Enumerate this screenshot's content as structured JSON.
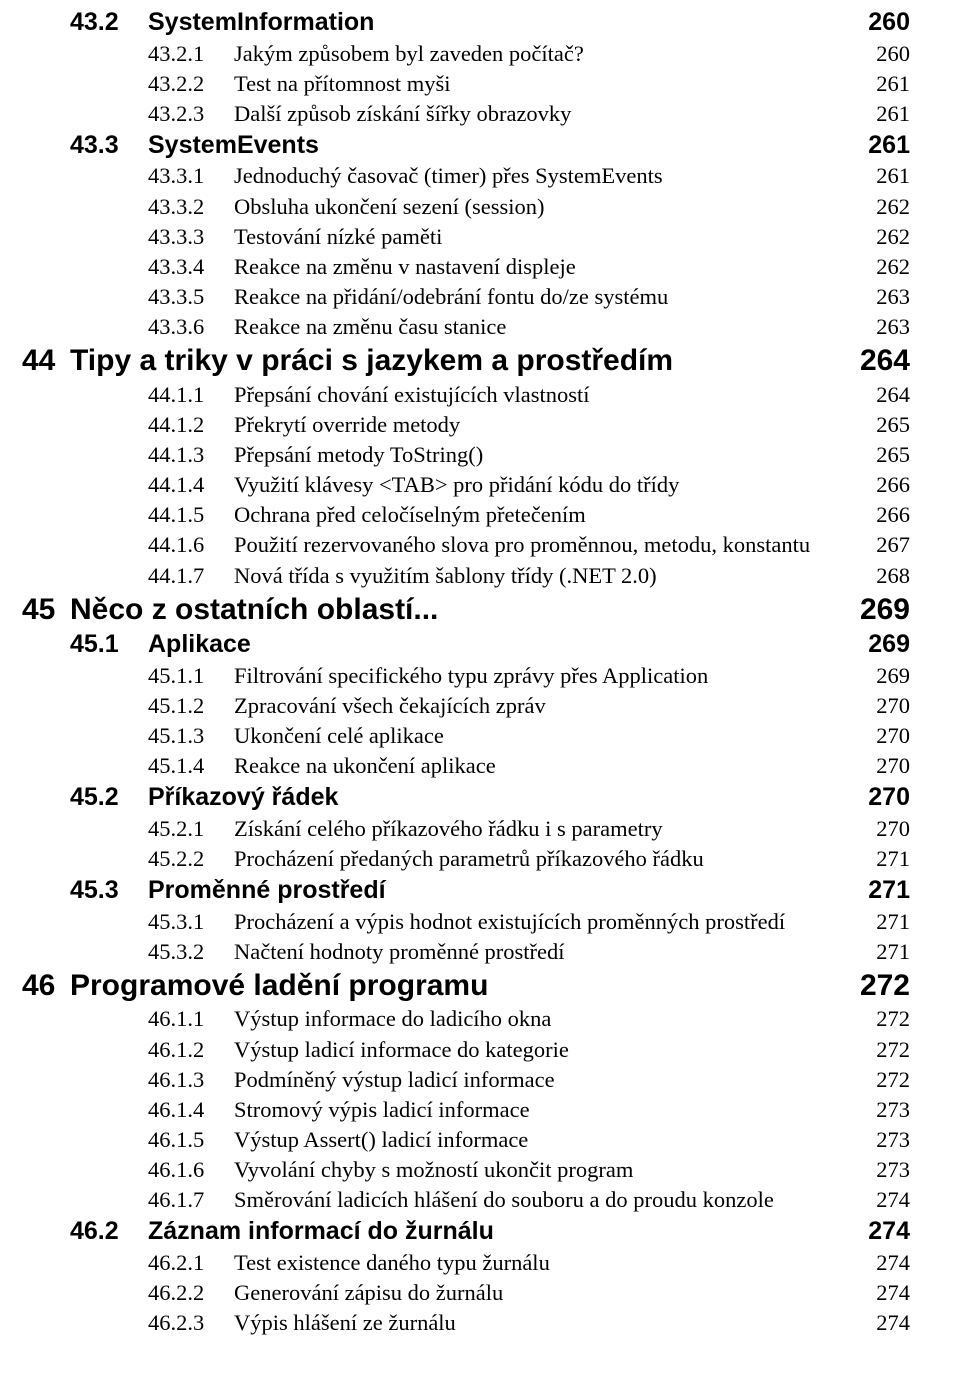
{
  "text_color": "#000000",
  "background_color": "#ffffff",
  "fonts": {
    "serif": "Times New Roman",
    "sans": "Arial/Helvetica"
  },
  "font_sizes_pt": {
    "l1": 22,
    "l2": 18,
    "l3": 16
  },
  "toc": [
    {
      "level": 2,
      "num": "43.2",
      "title": "SystemInformation",
      "page": "260"
    },
    {
      "level": 3,
      "num": "43.2.1",
      "title": "Jakým způsobem byl zaveden počítač?",
      "page": "260"
    },
    {
      "level": 3,
      "num": "43.2.2",
      "title": "Test na přítomnost myši",
      "page": "261"
    },
    {
      "level": 3,
      "num": "43.2.3",
      "title": "Další způsob získání šířky obrazovky",
      "page": "261"
    },
    {
      "level": 2,
      "num": "43.3",
      "title": "SystemEvents",
      "page": "261"
    },
    {
      "level": 3,
      "num": "43.3.1",
      "title": "Jednoduchý časovač (timer) přes SystemEvents",
      "page": "261"
    },
    {
      "level": 3,
      "num": "43.3.2",
      "title": "Obsluha ukončení sezení (session)",
      "page": "262"
    },
    {
      "level": 3,
      "num": "43.3.3",
      "title": "Testování nízké paměti",
      "page": "262"
    },
    {
      "level": 3,
      "num": "43.3.4",
      "title": "Reakce na změnu v nastavení displeje",
      "page": "262"
    },
    {
      "level": 3,
      "num": "43.3.5",
      "title": "Reakce na přidání/odebrání fontu do/ze systému",
      "page": "263"
    },
    {
      "level": 3,
      "num": "43.3.6",
      "title": "Reakce na změnu času stanice",
      "page": "263"
    },
    {
      "level": 1,
      "num": "44",
      "title": "Tipy a triky v práci s jazykem a prostředím",
      "page": "264"
    },
    {
      "level": 3,
      "num": "44.1.1",
      "title": "Přepsání chování existujících vlastností",
      "page": "264"
    },
    {
      "level": 3,
      "num": "44.1.2",
      "title": "Překrytí override metody",
      "page": "265"
    },
    {
      "level": 3,
      "num": "44.1.3",
      "title": "Přepsání metody ToString()",
      "page": "265"
    },
    {
      "level": 3,
      "num": "44.1.4",
      "title": "Využití klávesy <TAB> pro přidání kódu do třídy",
      "page": "266"
    },
    {
      "level": 3,
      "num": "44.1.5",
      "title": "Ochrana před celočíselným přetečením",
      "page": "266"
    },
    {
      "level": 3,
      "num": "44.1.6",
      "title": "Použití rezervovaného slova pro proměnnou, metodu, konstantu",
      "page": "267"
    },
    {
      "level": 3,
      "num": "44.1.7",
      "title": "Nová třída s využitím šablony třídy (.NET 2.0)",
      "page": "268"
    },
    {
      "level": 1,
      "num": "45",
      "title": "Něco z ostatních oblastí...",
      "page": "269"
    },
    {
      "level": 2,
      "num": "45.1",
      "title": "Aplikace",
      "page": "269"
    },
    {
      "level": 3,
      "num": "45.1.1",
      "title": "Filtrování specifického typu zprávy přes Application",
      "page": "269"
    },
    {
      "level": 3,
      "num": "45.1.2",
      "title": "Zpracování všech čekajících zpráv",
      "page": "270"
    },
    {
      "level": 3,
      "num": "45.1.3",
      "title": "Ukončení celé aplikace",
      "page": "270"
    },
    {
      "level": 3,
      "num": "45.1.4",
      "title": "Reakce na ukončení aplikace",
      "page": "270"
    },
    {
      "level": 2,
      "num": "45.2",
      "title": "Příkazový řádek",
      "page": "270"
    },
    {
      "level": 3,
      "num": "45.2.1",
      "title": "Získání celého příkazového řádku i s parametry",
      "page": "270"
    },
    {
      "level": 3,
      "num": "45.2.2",
      "title": "Procházení předaných parametrů příkazového řádku",
      "page": "271"
    },
    {
      "level": 2,
      "num": "45.3",
      "title": "Proměnné prostředí",
      "page": "271"
    },
    {
      "level": 3,
      "num": "45.3.1",
      "title": "Procházení a výpis hodnot existujících proměnných prostředí",
      "page": "271"
    },
    {
      "level": 3,
      "num": "45.3.2",
      "title": "Načtení hodnoty proměnné prostředí",
      "page": "271"
    },
    {
      "level": 1,
      "num": "46",
      "title": "Programové ladění programu",
      "page": "272"
    },
    {
      "level": 3,
      "num": "46.1.1",
      "title": "Výstup informace do ladicího okna",
      "page": "272"
    },
    {
      "level": 3,
      "num": "46.1.2",
      "title": "Výstup ladicí informace do kategorie",
      "page": "272"
    },
    {
      "level": 3,
      "num": "46.1.3",
      "title": "Podmíněný výstup ladicí informace",
      "page": "272"
    },
    {
      "level": 3,
      "num": "46.1.4",
      "title": "Stromový výpis ladicí informace",
      "page": "273"
    },
    {
      "level": 3,
      "num": "46.1.5",
      "title": "Výstup Assert() ladicí informace",
      "page": "273"
    },
    {
      "level": 3,
      "num": "46.1.6",
      "title": "Vyvolání chyby s možností ukončit program",
      "page": "273"
    },
    {
      "level": 3,
      "num": "46.1.7",
      "title": "Směrování ladicích hlášení do souboru a do proudu konzole",
      "page": "274"
    },
    {
      "level": 2,
      "num": "46.2",
      "title": "Záznam informací do žurnálu",
      "page": "274"
    },
    {
      "level": 3,
      "num": "46.2.1",
      "title": "Test existence daného typu žurnálu",
      "page": "274"
    },
    {
      "level": 3,
      "num": "46.2.2",
      "title": "Generování zápisu do žurnálu",
      "page": "274"
    },
    {
      "level": 3,
      "num": "46.2.3",
      "title": "Výpis hlášení ze žurnálu",
      "page": "274"
    }
  ]
}
